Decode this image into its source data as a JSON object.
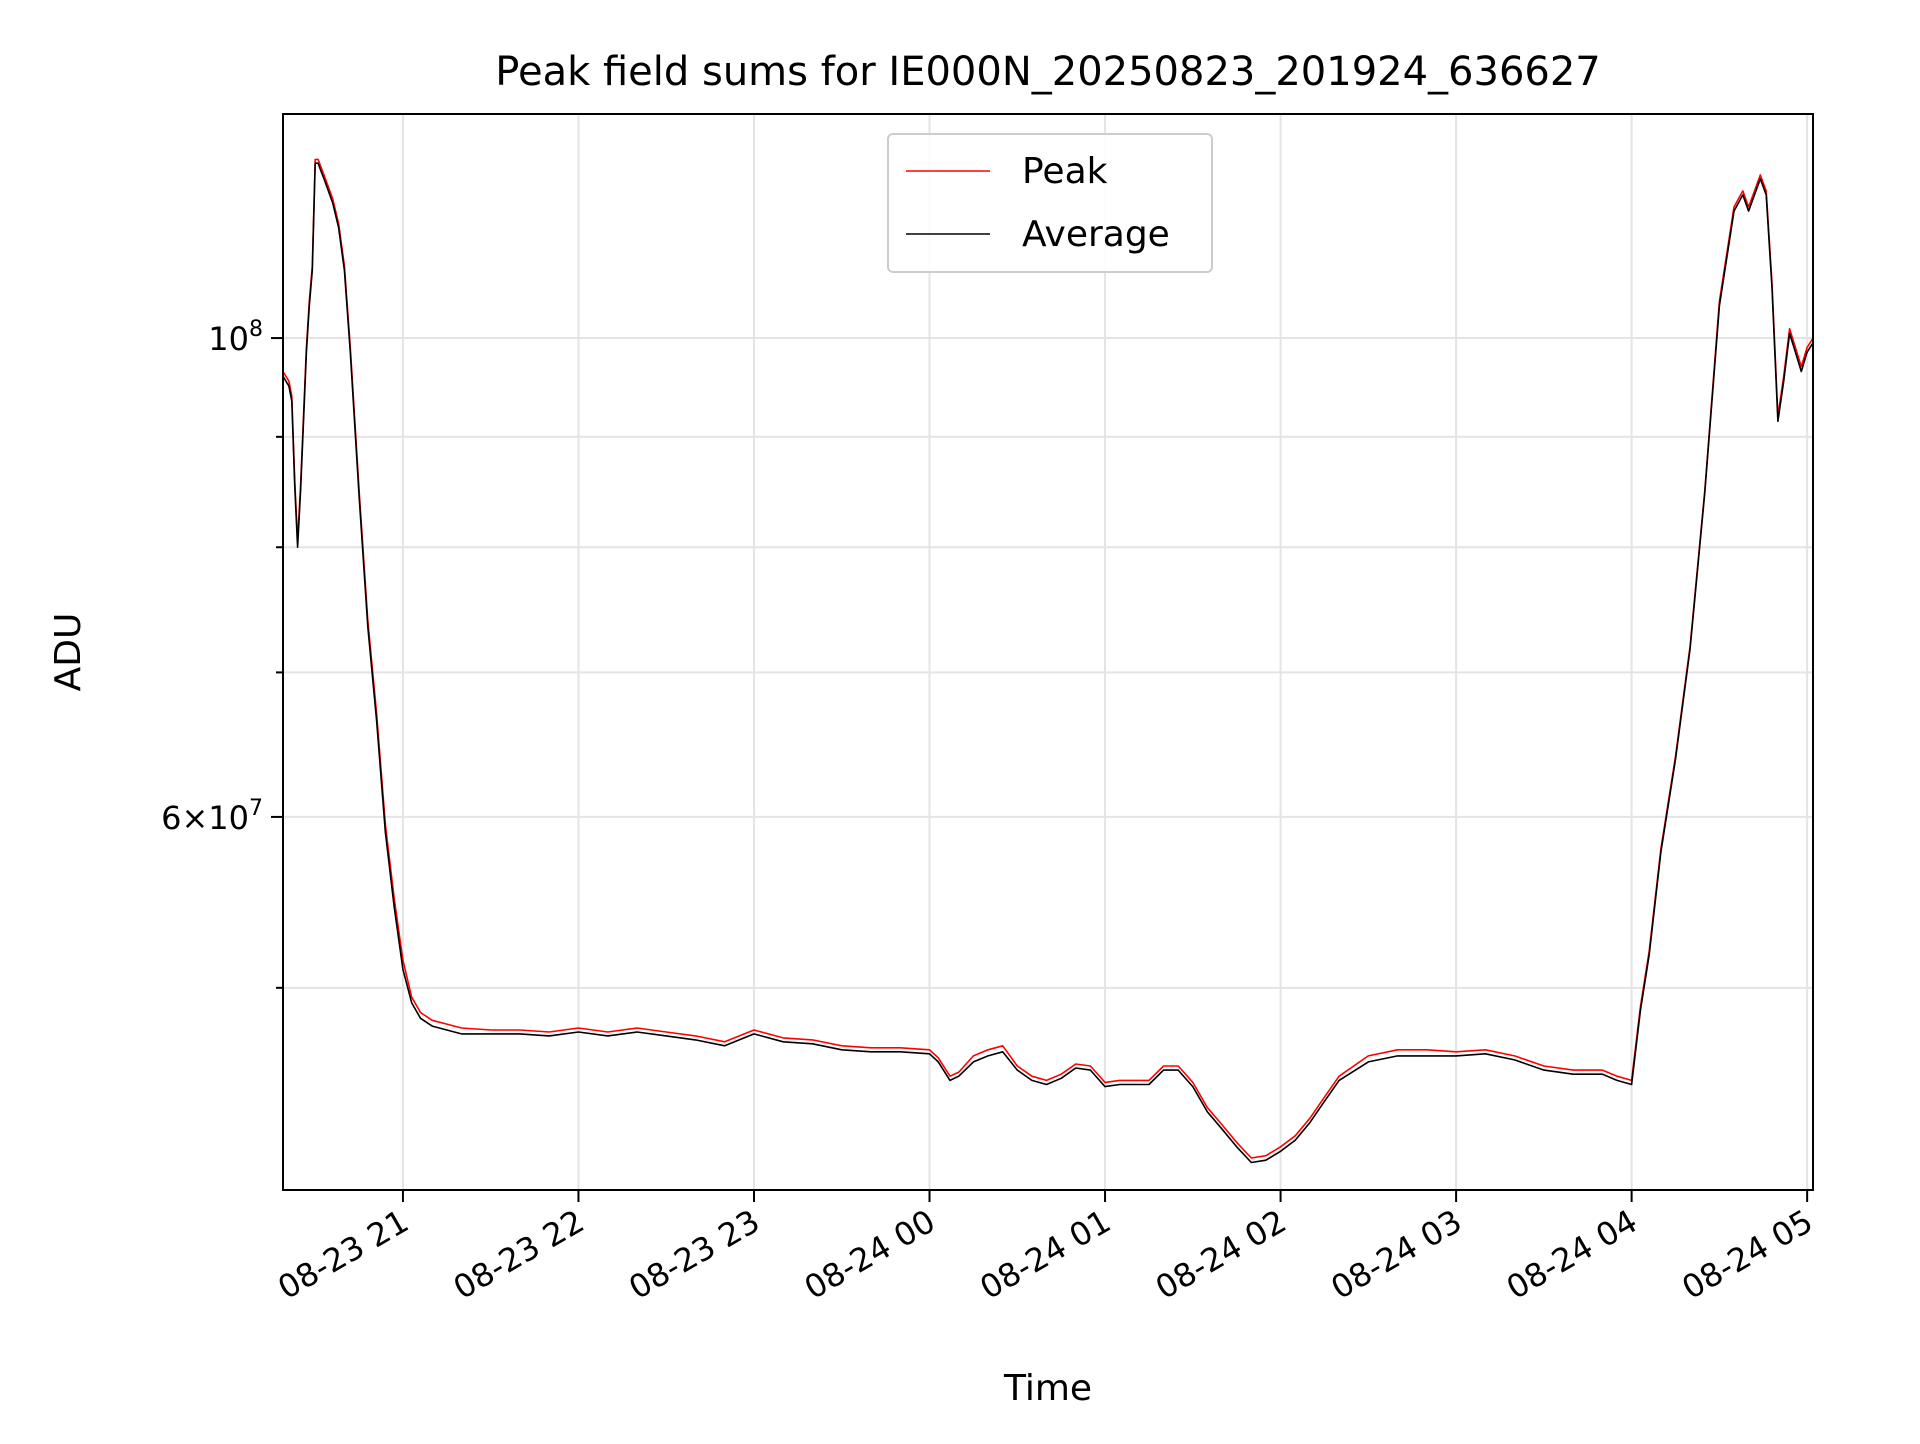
{
  "chart_data": {
    "type": "line",
    "title": "Peak field sums for IE000N_20250823_201924_636627",
    "xlabel": "Time",
    "ylabel": "ADU",
    "y_scale": "log",
    "grid": true,
    "legend_placement": "upper center",
    "x_range": [
      "2025-08-23 20:19",
      "2025-08-24 05:02"
    ],
    "y_range": [
      40300000,
      127000000
    ],
    "x_ticks": [
      {
        "value": "2025-08-23 21:00",
        "label": "08-23 21"
      },
      {
        "value": "2025-08-23 22:00",
        "label": "08-23 22"
      },
      {
        "value": "2025-08-23 23:00",
        "label": "08-23 23"
      },
      {
        "value": "2025-08-24 00:00",
        "label": "08-24 00"
      },
      {
        "value": "2025-08-24 01:00",
        "label": "08-24 01"
      },
      {
        "value": "2025-08-24 02:00",
        "label": "08-24 02"
      },
      {
        "value": "2025-08-24 03:00",
        "label": "08-24 03"
      },
      {
        "value": "2025-08-24 04:00",
        "label": "08-24 04"
      },
      {
        "value": "2025-08-24 05:00",
        "label": "08-24 05"
      }
    ],
    "y_major_ticks": [
      {
        "value": 100000000,
        "base": "10",
        "exp": "8"
      },
      {
        "value": 60000000,
        "base": "6×10",
        "exp": "7"
      }
    ],
    "y_minor_ticks": [
      50000000,
      70000000,
      80000000,
      90000000
    ],
    "series": [
      {
        "name": "Peak",
        "color": "#ff0000",
        "x": [
          "2025-08-23 20:19",
          "2025-08-23 20:21",
          "2025-08-23 20:22",
          "2025-08-23 20:23",
          "2025-08-23 20:24",
          "2025-08-23 20:25",
          "2025-08-23 20:26",
          "2025-08-23 20:27",
          "2025-08-23 20:28",
          "2025-08-23 20:29",
          "2025-08-23 20:30",
          "2025-08-23 20:31",
          "2025-08-23 20:32",
          "2025-08-23 20:33",
          "2025-08-23 20:34",
          "2025-08-23 20:36",
          "2025-08-23 20:38",
          "2025-08-23 20:40",
          "2025-08-23 20:42",
          "2025-08-23 20:45",
          "2025-08-23 20:48",
          "2025-08-23 20:51",
          "2025-08-23 20:54",
          "2025-08-23 20:57",
          "2025-08-23 21:00",
          "2025-08-23 21:03",
          "2025-08-23 21:06",
          "2025-08-23 21:10",
          "2025-08-23 21:15",
          "2025-08-23 21:20",
          "2025-08-23 21:30",
          "2025-08-23 21:40",
          "2025-08-23 21:50",
          "2025-08-23 22:00",
          "2025-08-23 22:10",
          "2025-08-23 22:20",
          "2025-08-23 22:30",
          "2025-08-23 22:40",
          "2025-08-23 22:50",
          "2025-08-23 23:00",
          "2025-08-23 23:10",
          "2025-08-23 23:20",
          "2025-08-23 23:30",
          "2025-08-23 23:40",
          "2025-08-23 23:50",
          "2025-08-24 00:00",
          "2025-08-24 00:03",
          "2025-08-24 00:07",
          "2025-08-24 00:10",
          "2025-08-24 00:15",
          "2025-08-24 00:20",
          "2025-08-24 00:25",
          "2025-08-24 00:30",
          "2025-08-24 00:35",
          "2025-08-24 00:40",
          "2025-08-24 00:45",
          "2025-08-24 00:50",
          "2025-08-24 00:55",
          "2025-08-24 01:00",
          "2025-08-24 01:05",
          "2025-08-24 01:10",
          "2025-08-24 01:15",
          "2025-08-24 01:20",
          "2025-08-24 01:25",
          "2025-08-24 01:30",
          "2025-08-24 01:35",
          "2025-08-24 01:40",
          "2025-08-24 01:45",
          "2025-08-24 01:50",
          "2025-08-24 01:55",
          "2025-08-24 02:00",
          "2025-08-24 02:05",
          "2025-08-24 02:10",
          "2025-08-24 02:15",
          "2025-08-24 02:20",
          "2025-08-24 02:30",
          "2025-08-24 02:40",
          "2025-08-24 02:50",
          "2025-08-24 03:00",
          "2025-08-24 03:10",
          "2025-08-24 03:20",
          "2025-08-24 03:30",
          "2025-08-24 03:40",
          "2025-08-24 03:50",
          "2025-08-24 03:55",
          "2025-08-24 04:00",
          "2025-08-24 04:03",
          "2025-08-24 04:06",
          "2025-08-24 04:10",
          "2025-08-24 04:15",
          "2025-08-24 04:20",
          "2025-08-24 04:25",
          "2025-08-24 04:30",
          "2025-08-24 04:35",
          "2025-08-24 04:38",
          "2025-08-24 04:40",
          "2025-08-24 04:42",
          "2025-08-24 04:44",
          "2025-08-24 04:46",
          "2025-08-24 04:48",
          "2025-08-24 04:50",
          "2025-08-24 04:52",
          "2025-08-24 04:54",
          "2025-08-24 04:56",
          "2025-08-24 04:58",
          "2025-08-24 05:00",
          "2025-08-24 05:02"
        ],
        "y": [
          96500000,
          95500000,
          94000000,
          86000000,
          80500000,
          85500000,
          92000000,
          99000000,
          104000000,
          108000000,
          121000000,
          121000000,
          120000000,
          119000000,
          118000000,
          116000000,
          113000000,
          108000000,
          99000000,
          85000000,
          74000000,
          67000000,
          59500000,
          55000000,
          51500000,
          49500000,
          48700000,
          48300000,
          48100000,
          47900000,
          47800000,
          47800000,
          47700000,
          47900000,
          47700000,
          47900000,
          47700000,
          47500000,
          47200000,
          47800000,
          47400000,
          47300000,
          47000000,
          46900000,
          46900000,
          46800000,
          46400000,
          45500000,
          45700000,
          46500000,
          46800000,
          47000000,
          46000000,
          45500000,
          45300000,
          45600000,
          46100000,
          46000000,
          45200000,
          45300000,
          45300000,
          45300000,
          46000000,
          46000000,
          45200000,
          44000000,
          43200000,
          42400000,
          41700000,
          41800000,
          42200000,
          42700000,
          43500000,
          44500000,
          45500000,
          46500000,
          46800000,
          46800000,
          46700000,
          46800000,
          46500000,
          46000000,
          45800000,
          45800000,
          45500000,
          45300000,
          49000000,
          52000000,
          58000000,
          64000000,
          72000000,
          85000000,
          104000000,
          115000000,
          117000000,
          115000000,
          117000000,
          119000000,
          117000000,
          106000000,
          92000000,
          96000000,
          101000000,
          99000000,
          97000000,
          99000000,
          100000000
        ]
      },
      {
        "name": "Average",
        "color": "#000000",
        "x": [
          "2025-08-23 20:19",
          "2025-08-23 20:21",
          "2025-08-23 20:22",
          "2025-08-23 20:23",
          "2025-08-23 20:24",
          "2025-08-23 20:25",
          "2025-08-23 20:26",
          "2025-08-23 20:27",
          "2025-08-23 20:28",
          "2025-08-23 20:29",
          "2025-08-23 20:30",
          "2025-08-23 20:31",
          "2025-08-23 20:32",
          "2025-08-23 20:33",
          "2025-08-23 20:34",
          "2025-08-23 20:36",
          "2025-08-23 20:38",
          "2025-08-23 20:40",
          "2025-08-23 20:42",
          "2025-08-23 20:45",
          "2025-08-23 20:48",
          "2025-08-23 20:51",
          "2025-08-23 20:54",
          "2025-08-23 20:57",
          "2025-08-23 21:00",
          "2025-08-23 21:03",
          "2025-08-23 21:06",
          "2025-08-23 21:10",
          "2025-08-23 21:15",
          "2025-08-23 21:20",
          "2025-08-23 21:30",
          "2025-08-23 21:40",
          "2025-08-23 21:50",
          "2025-08-23 22:00",
          "2025-08-23 22:10",
          "2025-08-23 22:20",
          "2025-08-23 22:30",
          "2025-08-23 22:40",
          "2025-08-23 22:50",
          "2025-08-23 23:00",
          "2025-08-23 23:10",
          "2025-08-23 23:20",
          "2025-08-23 23:30",
          "2025-08-23 23:40",
          "2025-08-23 23:50",
          "2025-08-24 00:00",
          "2025-08-24 00:03",
          "2025-08-24 00:07",
          "2025-08-24 00:10",
          "2025-08-24 00:15",
          "2025-08-24 00:20",
          "2025-08-24 00:25",
          "2025-08-24 00:30",
          "2025-08-24 00:35",
          "2025-08-24 00:40",
          "2025-08-24 00:45",
          "2025-08-24 00:50",
          "2025-08-24 00:55",
          "2025-08-24 01:00",
          "2025-08-24 01:05",
          "2025-08-24 01:10",
          "2025-08-24 01:15",
          "2025-08-24 01:20",
          "2025-08-24 01:25",
          "2025-08-24 01:30",
          "2025-08-24 01:35",
          "2025-08-24 01:40",
          "2025-08-24 01:45",
          "2025-08-24 01:50",
          "2025-08-24 01:55",
          "2025-08-24 02:00",
          "2025-08-24 02:05",
          "2025-08-24 02:10",
          "2025-08-24 02:15",
          "2025-08-24 02:20",
          "2025-08-24 02:30",
          "2025-08-24 02:40",
          "2025-08-24 02:50",
          "2025-08-24 03:00",
          "2025-08-24 03:10",
          "2025-08-24 03:20",
          "2025-08-24 03:30",
          "2025-08-24 03:40",
          "2025-08-24 03:50",
          "2025-08-24 03:55",
          "2025-08-24 04:00",
          "2025-08-24 04:03",
          "2025-08-24 04:06",
          "2025-08-24 04:10",
          "2025-08-24 04:15",
          "2025-08-24 04:20",
          "2025-08-24 04:25",
          "2025-08-24 04:30",
          "2025-08-24 04:35",
          "2025-08-24 04:38",
          "2025-08-24 04:40",
          "2025-08-24 04:42",
          "2025-08-24 04:44",
          "2025-08-24 04:46",
          "2025-08-24 04:48",
          "2025-08-24 04:50",
          "2025-08-24 04:52",
          "2025-08-24 04:54",
          "2025-08-24 04:56",
          "2025-08-24 04:58",
          "2025-08-24 05:00",
          "2025-08-24 05:02"
        ],
        "y": [
          96000000,
          95000000,
          93500000,
          85500000,
          80000000,
          85000000,
          91500000,
          98500000,
          103500000,
          107500000,
          120500000,
          120500000,
          119500000,
          118500000,
          117500000,
          115500000,
          112500000,
          107500000,
          98500000,
          84500000,
          73500000,
          66500000,
          59000000,
          54500000,
          51000000,
          49200000,
          48400000,
          48000000,
          47800000,
          47600000,
          47600000,
          47600000,
          47500000,
          47700000,
          47500000,
          47700000,
          47500000,
          47300000,
          47000000,
          47600000,
          47200000,
          47100000,
          46800000,
          46700000,
          46700000,
          46600000,
          46200000,
          45300000,
          45500000,
          46200000,
          46500000,
          46700000,
          45800000,
          45300000,
          45100000,
          45400000,
          45900000,
          45800000,
          45000000,
          45100000,
          45100000,
          45100000,
          45800000,
          45800000,
          45000000,
          43800000,
          43000000,
          42200000,
          41500000,
          41600000,
          42000000,
          42500000,
          43300000,
          44300000,
          45300000,
          46200000,
          46500000,
          46500000,
          46500000,
          46600000,
          46300000,
          45800000,
          45600000,
          45600000,
          45300000,
          45100000,
          48800000,
          51800000,
          57800000,
          63800000,
          71800000,
          84800000,
          103500000,
          114500000,
          116500000,
          114500000,
          116500000,
          118500000,
          116500000,
          105500000,
          91500000,
          95500000,
          100500000,
          98500000,
          96500000,
          98500000,
          99500000
        ]
      }
    ]
  }
}
